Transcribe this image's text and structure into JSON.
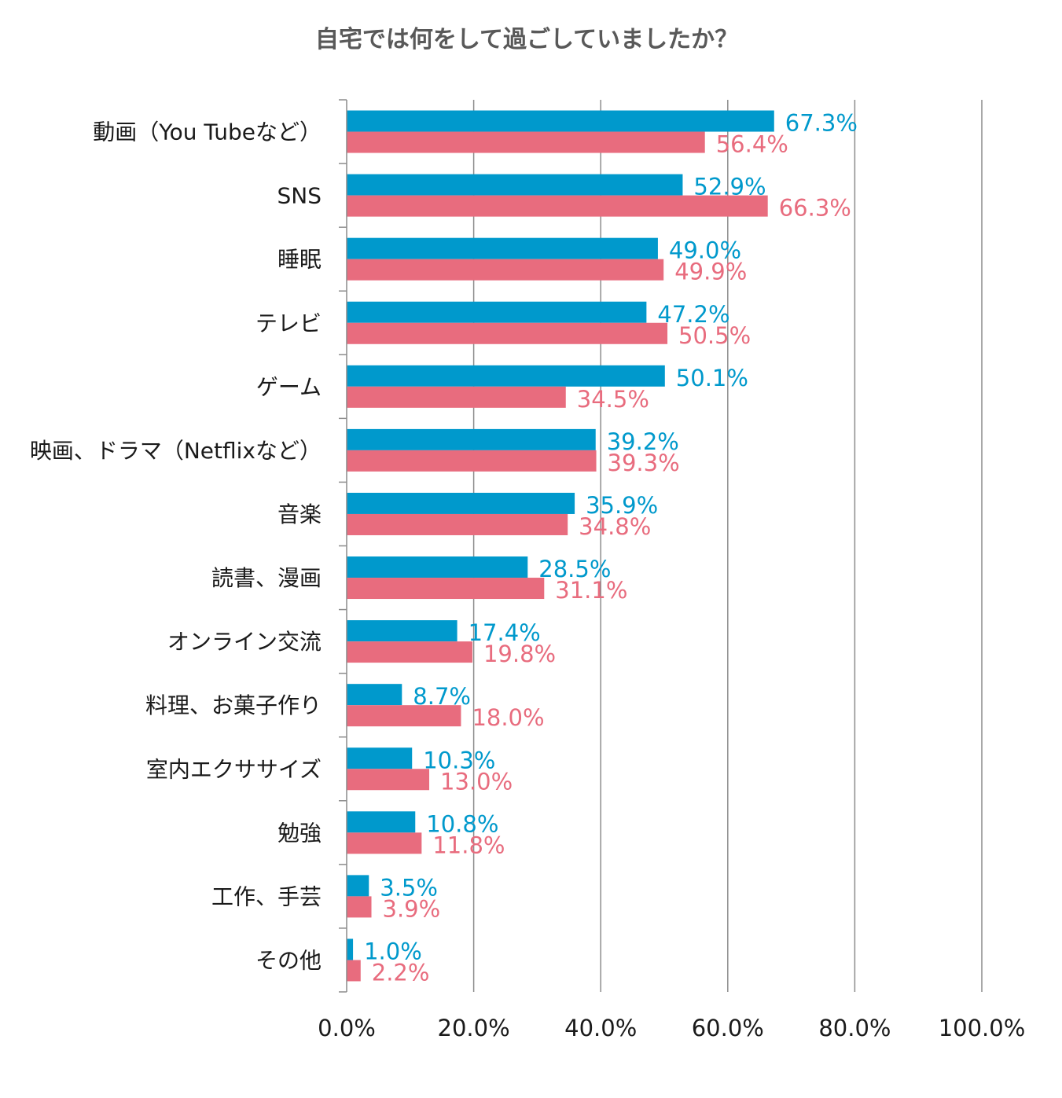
{
  "chart_data": {
    "type": "bar",
    "orientation": "horizontal",
    "title": "自宅では何をして過ごしていましたか？",
    "categories": [
      "動画（You Tubeなど）",
      "SNS",
      "睡眠",
      "テレビ",
      "ゲーム",
      "映画、ドラマ（Netflixなど）",
      "音楽",
      "読書、漫画",
      "オンライン交流",
      "料理、お菓子作り",
      "室内エクササイズ",
      "勉強",
      "工作、手芸",
      "その他"
    ],
    "series": [
      {
        "color": "#0099cc",
        "values": [
          67.3,
          52.9,
          49.0,
          47.2,
          50.1,
          39.2,
          35.9,
          28.5,
          17.4,
          8.7,
          10.3,
          10.8,
          3.5,
          1.0
        ],
        "labels": [
          "67.3%",
          "52.9%",
          "49.0%",
          "47.2%",
          "50.1%",
          "39.2%",
          "35.9%",
          "28.5%",
          "17.4%",
          "8.7%",
          "10.3%",
          "10.8%",
          "3.5%",
          "1.0%"
        ]
      },
      {
        "color": "#e86c7e",
        "values": [
          56.4,
          66.3,
          49.9,
          50.5,
          34.5,
          39.3,
          34.8,
          31.1,
          19.8,
          18.0,
          13.0,
          11.8,
          3.9,
          2.2
        ],
        "labels": [
          "56.4%",
          "66.3%",
          "49.9%",
          "50.5%",
          "34.5%",
          "39.3%",
          "34.8%",
          "31.1%",
          "19.8%",
          "18.0%",
          "13.0%",
          "11.8%",
          "3.9%",
          "2.2%"
        ]
      }
    ],
    "xlim": [
      0,
      100
    ],
    "xticks": [
      "0.0%",
      "20.0%",
      "40.0%",
      "60.0%",
      "80.0%",
      "100.0%"
    ],
    "grid": true,
    "xlabel": "",
    "ylabel": ""
  }
}
